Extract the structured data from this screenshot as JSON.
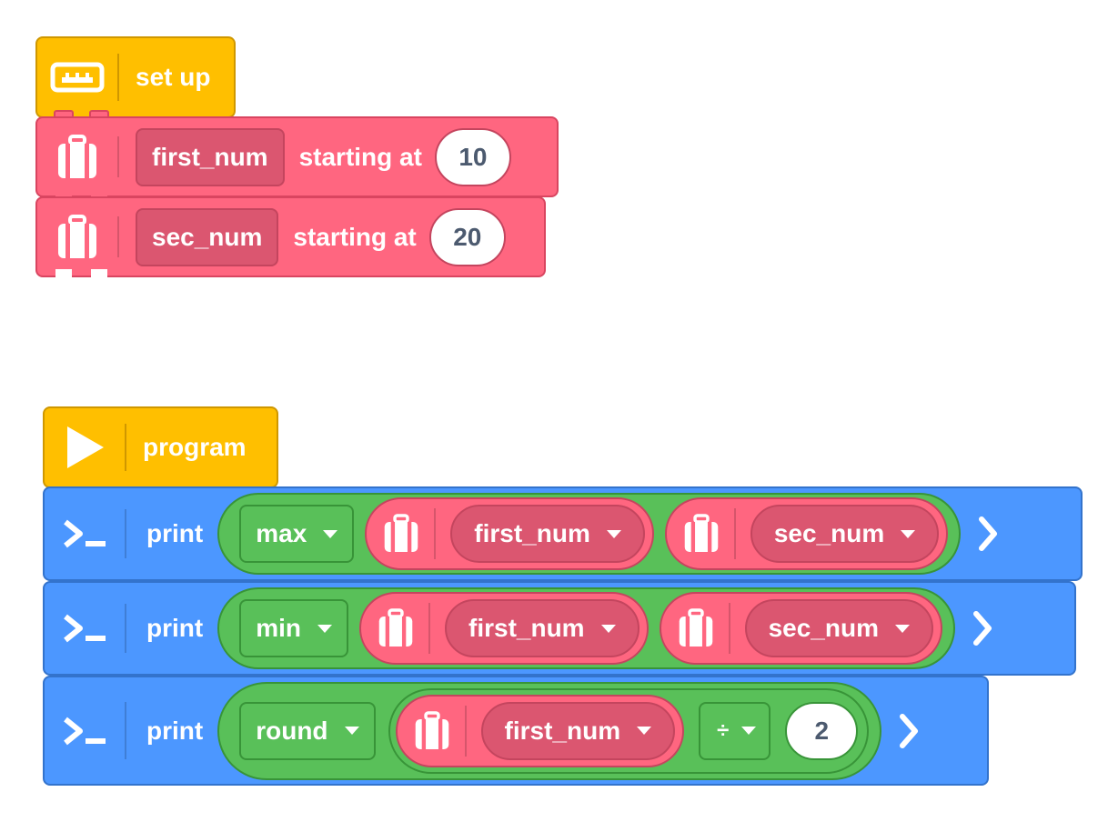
{
  "setup_stack": {
    "hat_label": "set up",
    "blocks": [
      {
        "icon": "suitcase-icon",
        "variable": "first_num",
        "keyword": "starting at",
        "value": "10"
      },
      {
        "icon": "suitcase-icon",
        "variable": "sec_num",
        "keyword": "starting at",
        "value": "20"
      }
    ]
  },
  "program_stack": {
    "hat_label": "program",
    "print_label": "print",
    "blocks": [
      {
        "function": "max",
        "arg1": "first_num",
        "arg2": "sec_num"
      },
      {
        "function": "min",
        "arg1": "first_num",
        "arg2": "sec_num"
      },
      {
        "function": "round",
        "arg1": "first_num",
        "operator": "÷",
        "operand": "2"
      }
    ]
  },
  "colors": {
    "hat": "#ffbf00",
    "variable": "#ff6680",
    "print": "#4c97ff",
    "operator": "#59c059"
  }
}
